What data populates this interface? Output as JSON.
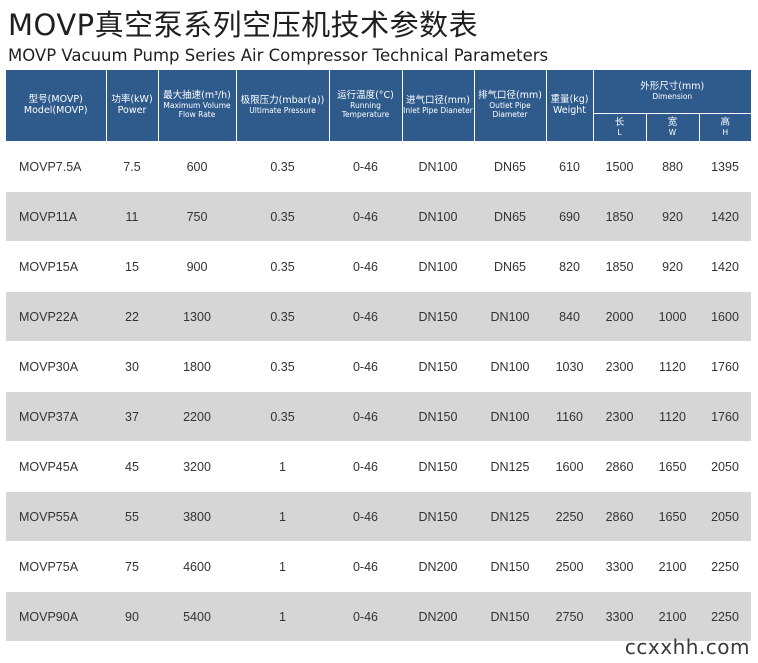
{
  "title": "MOVP真空泵系列空压机技术参数表",
  "subtitle": "MOVP Vacuum Pump Series  Air Compressor Technical Parameters",
  "header": {
    "model": {
      "zh": "型号(MOVP)",
      "en": "Model(MOVP)"
    },
    "power": {
      "zh": "功率(kW)",
      "en": "Power"
    },
    "flow": {
      "zh": "最大抽速(m³/h)",
      "en": "Maximum Volume Flow Rate"
    },
    "pressure": {
      "zh": "极限压力(mbar(a))",
      "en": "Ultimate Pressure"
    },
    "temp": {
      "zh": "运行温度(°C)",
      "en": "Running Temperature"
    },
    "inlet": {
      "zh": "进气口径(mm)",
      "en": "Inlet Pipe Dianeter"
    },
    "outlet": {
      "zh": "排气口径(mm)",
      "en": "Outlet Pipe Diameter"
    },
    "weight": {
      "zh": "重量(kg)",
      "en": "Weight"
    },
    "dimension": {
      "zh": "外形尺寸(mm)",
      "en": "Dimension"
    },
    "length": {
      "zh": "长",
      "en": "L"
    },
    "width": {
      "zh": "宽",
      "en": "W"
    },
    "height": {
      "zh": "高",
      "en": "H"
    }
  },
  "rows": [
    [
      "MOVP7.5A",
      "7.5",
      "600",
      "0.35",
      "0-46",
      "DN100",
      "DN65",
      "610",
      "1500",
      "880",
      "1395"
    ],
    [
      "MOVP11A",
      "11",
      "750",
      "0.35",
      "0-46",
      "DN100",
      "DN65",
      "690",
      "1850",
      "920",
      "1420"
    ],
    [
      "MOVP15A",
      "15",
      "900",
      "0.35",
      "0-46",
      "DN100",
      "DN65",
      "820",
      "1850",
      "920",
      "1420"
    ],
    [
      "MOVP22A",
      "22",
      "1300",
      "0.35",
      "0-46",
      "DN150",
      "DN100",
      "840",
      "2000",
      "1000",
      "1600"
    ],
    [
      "MOVP30A",
      "30",
      "1800",
      "0.35",
      "0-46",
      "DN150",
      "DN100",
      "1030",
      "2300",
      "1120",
      "1760"
    ],
    [
      "MOVP37A",
      "37",
      "2200",
      "0.35",
      "0-46",
      "DN150",
      "DN100",
      "1160",
      "2300",
      "1120",
      "1760"
    ],
    [
      "MOVP45A",
      "45",
      "3200",
      "1",
      "0-46",
      "DN150",
      "DN125",
      "1600",
      "2860",
      "1650",
      "2050"
    ],
    [
      "MOVP55A",
      "55",
      "3800",
      "1",
      "0-46",
      "DN150",
      "DN125",
      "2250",
      "2860",
      "1650",
      "2050"
    ],
    [
      "MOVP75A",
      "75",
      "4600",
      "1",
      "0-46",
      "DN200",
      "DN150",
      "2500",
      "3300",
      "2100",
      "2250"
    ],
    [
      "MOVP90A",
      "90",
      "5400",
      "1",
      "0-46",
      "DN200",
      "DN150",
      "2750",
      "3300",
      "2100",
      "2250"
    ]
  ],
  "watermark": "ccxxhh.com",
  "colors": {
    "header_bg": "#2f5b8c",
    "stripe": "#d6d6d6"
  }
}
